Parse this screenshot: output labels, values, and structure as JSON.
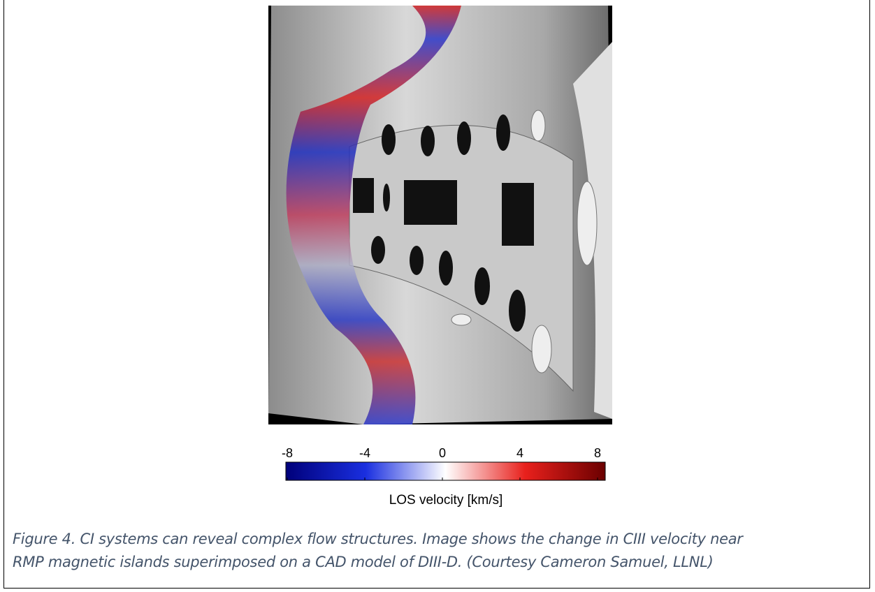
{
  "figure": {
    "colorbar": {
      "lim": [
        -8,
        8
      ],
      "ticks": [
        -8,
        -4,
        0,
        4,
        8
      ],
      "label": "LOS velocity [km/s]"
    },
    "caption": [
      "Figure 4. CI systems can reveal complex flow structures.  Image shows the change in CIII velocity near",
      "RMP magnetic islands superimposed on a CAD model of DIII-D. (Courtesy Cameron Samuel, LLNL)"
    ]
  }
}
